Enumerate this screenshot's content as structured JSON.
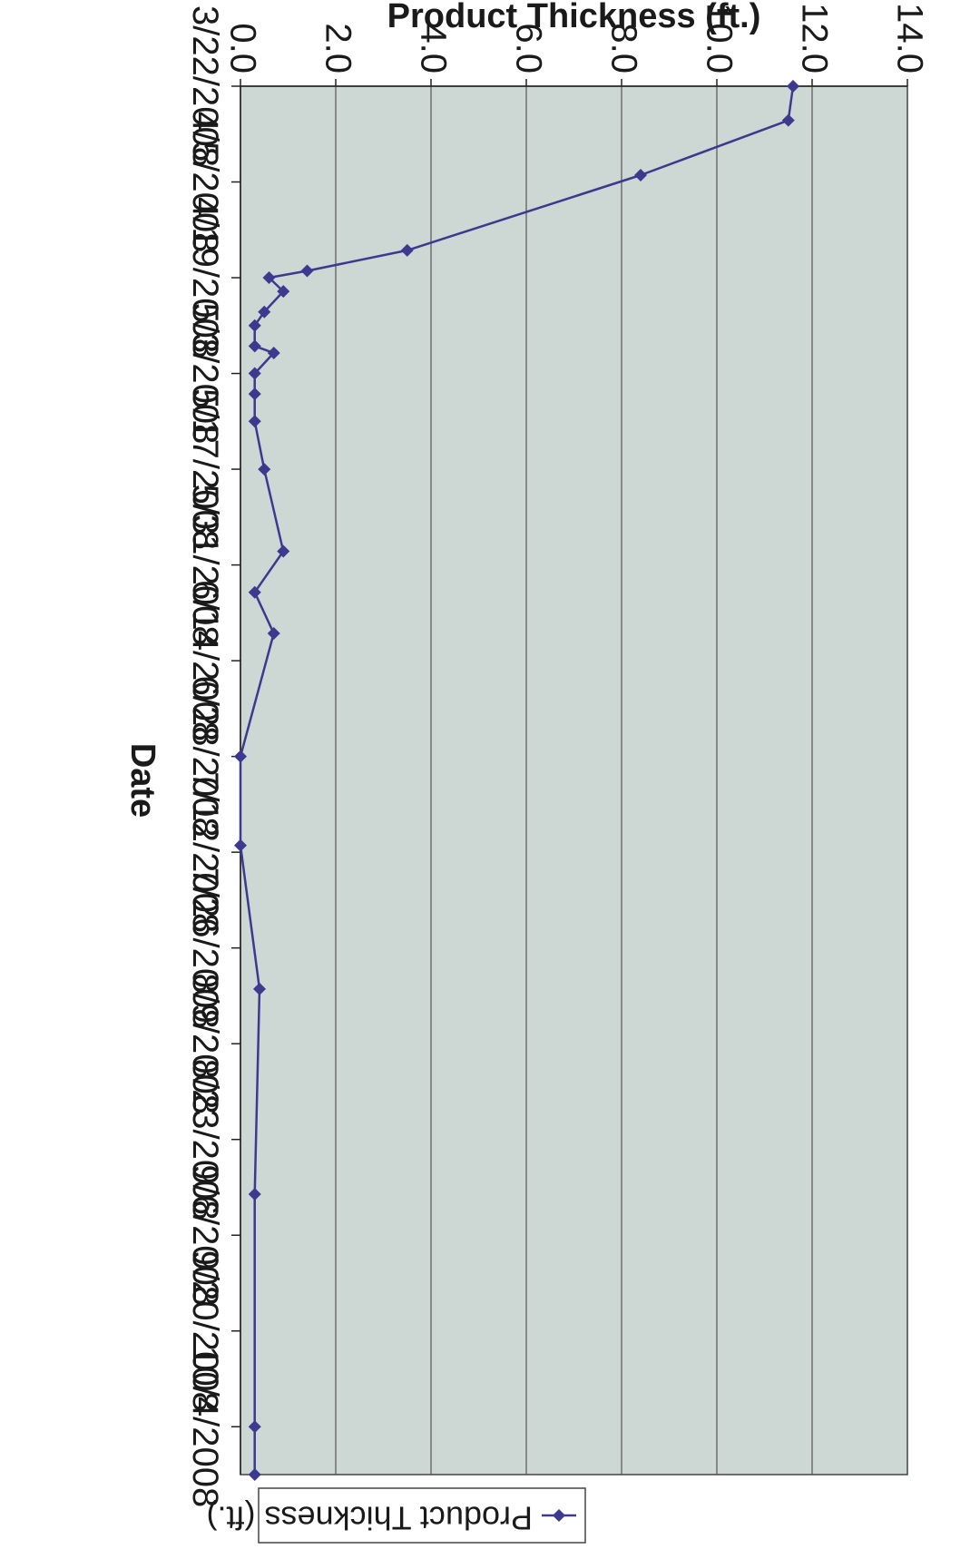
{
  "chart_data": {
    "type": "line",
    "rotation": "rotated 90 degrees clockwise",
    "title": "",
    "xlabel": "Date",
    "ylabel": "Product Thickness (ft.)",
    "ylim": [
      0,
      14
    ],
    "y_ticks": [
      "0.0",
      "2.0",
      "4.0",
      "6.0",
      "8.0",
      "10.0",
      "12.0",
      "14.0"
    ],
    "x_ticks": [
      "3/22/2008",
      "4/5/2008",
      "4/19/2008",
      "5/3/2008",
      "5/17/2008",
      "5/31/2008",
      "6/14/2008",
      "6/28/2008",
      "7/12/2008",
      "7/26/2008",
      "8/9/2008",
      "8/23/2008",
      "9/6/2008",
      "9/20/2008",
      "10/4/2008"
    ],
    "xlim": [
      "3/22/2008",
      "10/11/2008"
    ],
    "grid": true,
    "legend_position": "top",
    "series": [
      {
        "name": "Product Thickness (ft.)",
        "color": "#3b3a8f",
        "marker": "diamond",
        "points": [
          {
            "x": "3/22/2008",
            "y": 11.6
          },
          {
            "x": "3/27/2008",
            "y": 11.5
          },
          {
            "x": "4/4/2008",
            "y": 8.4
          },
          {
            "x": "4/15/2008",
            "y": 3.5
          },
          {
            "x": "4/18/2008",
            "y": 1.4
          },
          {
            "x": "4/19/2008",
            "y": 0.6
          },
          {
            "x": "4/21/2008",
            "y": 0.9
          },
          {
            "x": "4/24/2008",
            "y": 0.5
          },
          {
            "x": "4/26/2008",
            "y": 0.3
          },
          {
            "x": "4/29/2008",
            "y": 0.3
          },
          {
            "x": "4/30/2008",
            "y": 0.7
          },
          {
            "x": "5/3/2008",
            "y": 0.3
          },
          {
            "x": "5/6/2008",
            "y": 0.3
          },
          {
            "x": "5/10/2008",
            "y": 0.3
          },
          {
            "x": "5/17/2008",
            "y": 0.5
          },
          {
            "x": "5/29/2008",
            "y": 0.9
          },
          {
            "x": "6/4/2008",
            "y": 0.3
          },
          {
            "x": "6/10/2008",
            "y": 0.7
          },
          {
            "x": "6/28/2008",
            "y": 0.0
          },
          {
            "x": "7/11/2008",
            "y": 0.0
          },
          {
            "x": "8/1/2008",
            "y": 0.4
          },
          {
            "x": "8/31/2008",
            "y": 0.3
          },
          {
            "x": "10/4/2008",
            "y": 0.3
          },
          {
            "x": "10/11/2008",
            "y": 0.3
          }
        ]
      }
    ]
  },
  "colors": {
    "plot_background": "#cdd7d3",
    "gridline": "#555555",
    "series_line": "#3b3a8f"
  }
}
